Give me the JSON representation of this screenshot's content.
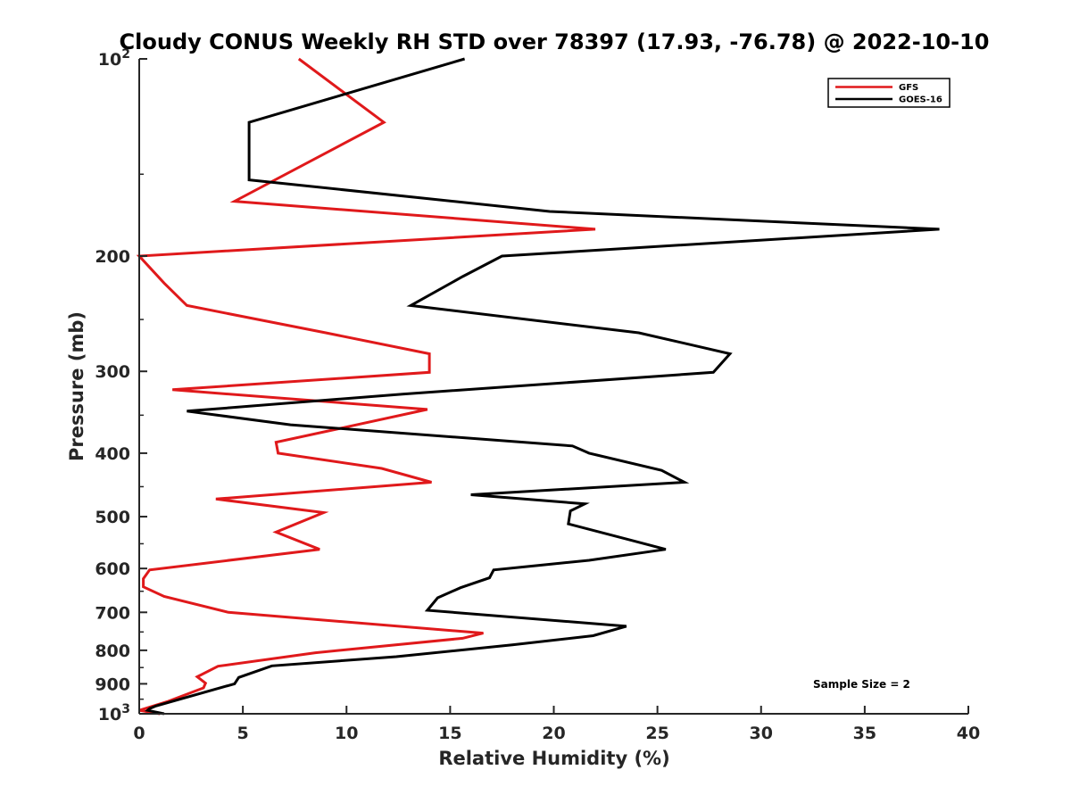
{
  "chart_data": {
    "type": "line",
    "title": "Cloudy CONUS Weekly RH STD over 78397 (17.93, -76.78) @ 2022-10-10",
    "xlabel": "Relative Humidity (%)",
    "ylabel": "Pressure (mb)",
    "xlim": [
      0,
      40
    ],
    "ylim": [
      100,
      1000
    ],
    "y_scale": "log",
    "y_reversed": true,
    "grid": false,
    "x_ticks": [
      "0",
      "5",
      "10",
      "15",
      "20",
      "25",
      "30",
      "35",
      "40"
    ],
    "y_ticks": [
      {
        "value": 100,
        "base": "10",
        "exp": "2"
      },
      {
        "value": 200,
        "label": "200"
      },
      {
        "value": 300,
        "label": "300"
      },
      {
        "value": 400,
        "label": "400"
      },
      {
        "value": 500,
        "label": "500"
      },
      {
        "value": 600,
        "label": "600"
      },
      {
        "value": 700,
        "label": "700"
      },
      {
        "value": 800,
        "label": "800"
      },
      {
        "value": 900,
        "label": "900"
      },
      {
        "value": 1000,
        "base": "10",
        "exp": "3"
      }
    ],
    "legend_position": "top-right",
    "annotation": "Sample Size = 2",
    "series": [
      {
        "name": "GFS",
        "color": "#e0191b",
        "points": [
          [
            7.7,
            100
          ],
          [
            11.8,
            125
          ],
          [
            4.6,
            165
          ],
          [
            22.0,
            182
          ],
          [
            0.0,
            200
          ],
          [
            1.2,
            220
          ],
          [
            2.3,
            238
          ],
          [
            9.0,
            262
          ],
          [
            14.0,
            282
          ],
          [
            14.0,
            301
          ],
          [
            1.6,
            320
          ],
          [
            13.9,
            343
          ],
          [
            6.6,
            385
          ],
          [
            6.7,
            400
          ],
          [
            11.7,
            422
          ],
          [
            14.1,
            443
          ],
          [
            3.7,
            470
          ],
          [
            8.9,
            493
          ],
          [
            6.6,
            528
          ],
          [
            8.7,
            561
          ],
          [
            0.5,
            603
          ],
          [
            0.2,
            622
          ],
          [
            0.2,
            640
          ],
          [
            1.2,
            662
          ],
          [
            4.3,
            700
          ],
          [
            16.6,
            753
          ],
          [
            15.6,
            767
          ],
          [
            8.5,
            807
          ],
          [
            3.8,
            846
          ],
          [
            2.8,
            878
          ],
          [
            3.2,
            898
          ],
          [
            3.1,
            913
          ],
          [
            1.4,
            957
          ],
          [
            0.0,
            988
          ],
          [
            1.0,
            1000
          ]
        ]
      },
      {
        "name": "GOES-16",
        "color": "#000000",
        "points": [
          [
            15.7,
            100
          ],
          [
            5.3,
            125
          ],
          [
            5.3,
            153
          ],
          [
            19.8,
            171
          ],
          [
            38.6,
            182
          ],
          [
            17.5,
            200
          ],
          [
            15.6,
            215
          ],
          [
            13.1,
            238
          ],
          [
            24.1,
            262
          ],
          [
            28.5,
            282
          ],
          [
            27.7,
            301
          ],
          [
            12.7,
            325
          ],
          [
            2.3,
            345
          ],
          [
            7.3,
            362
          ],
          [
            20.9,
            390
          ],
          [
            21.7,
            400
          ],
          [
            25.2,
            425
          ],
          [
            26.3,
            443
          ],
          [
            16.0,
            463
          ],
          [
            21.5,
            478
          ],
          [
            20.8,
            490
          ],
          [
            20.7,
            513
          ],
          [
            23.7,
            543
          ],
          [
            25.4,
            561
          ],
          [
            21.7,
            583
          ],
          [
            17.1,
            603
          ],
          [
            16.9,
            620
          ],
          [
            15.5,
            642
          ],
          [
            14.4,
            665
          ],
          [
            13.9,
            695
          ],
          [
            23.5,
            735
          ],
          [
            21.9,
            760
          ],
          [
            18.0,
            785
          ],
          [
            12.4,
            818
          ],
          [
            6.4,
            845
          ],
          [
            4.8,
            880
          ],
          [
            4.6,
            900
          ],
          [
            0.8,
            973
          ],
          [
            0.5,
            982
          ],
          [
            0.4,
            988
          ],
          [
            1.2,
            1000
          ]
        ]
      }
    ]
  }
}
